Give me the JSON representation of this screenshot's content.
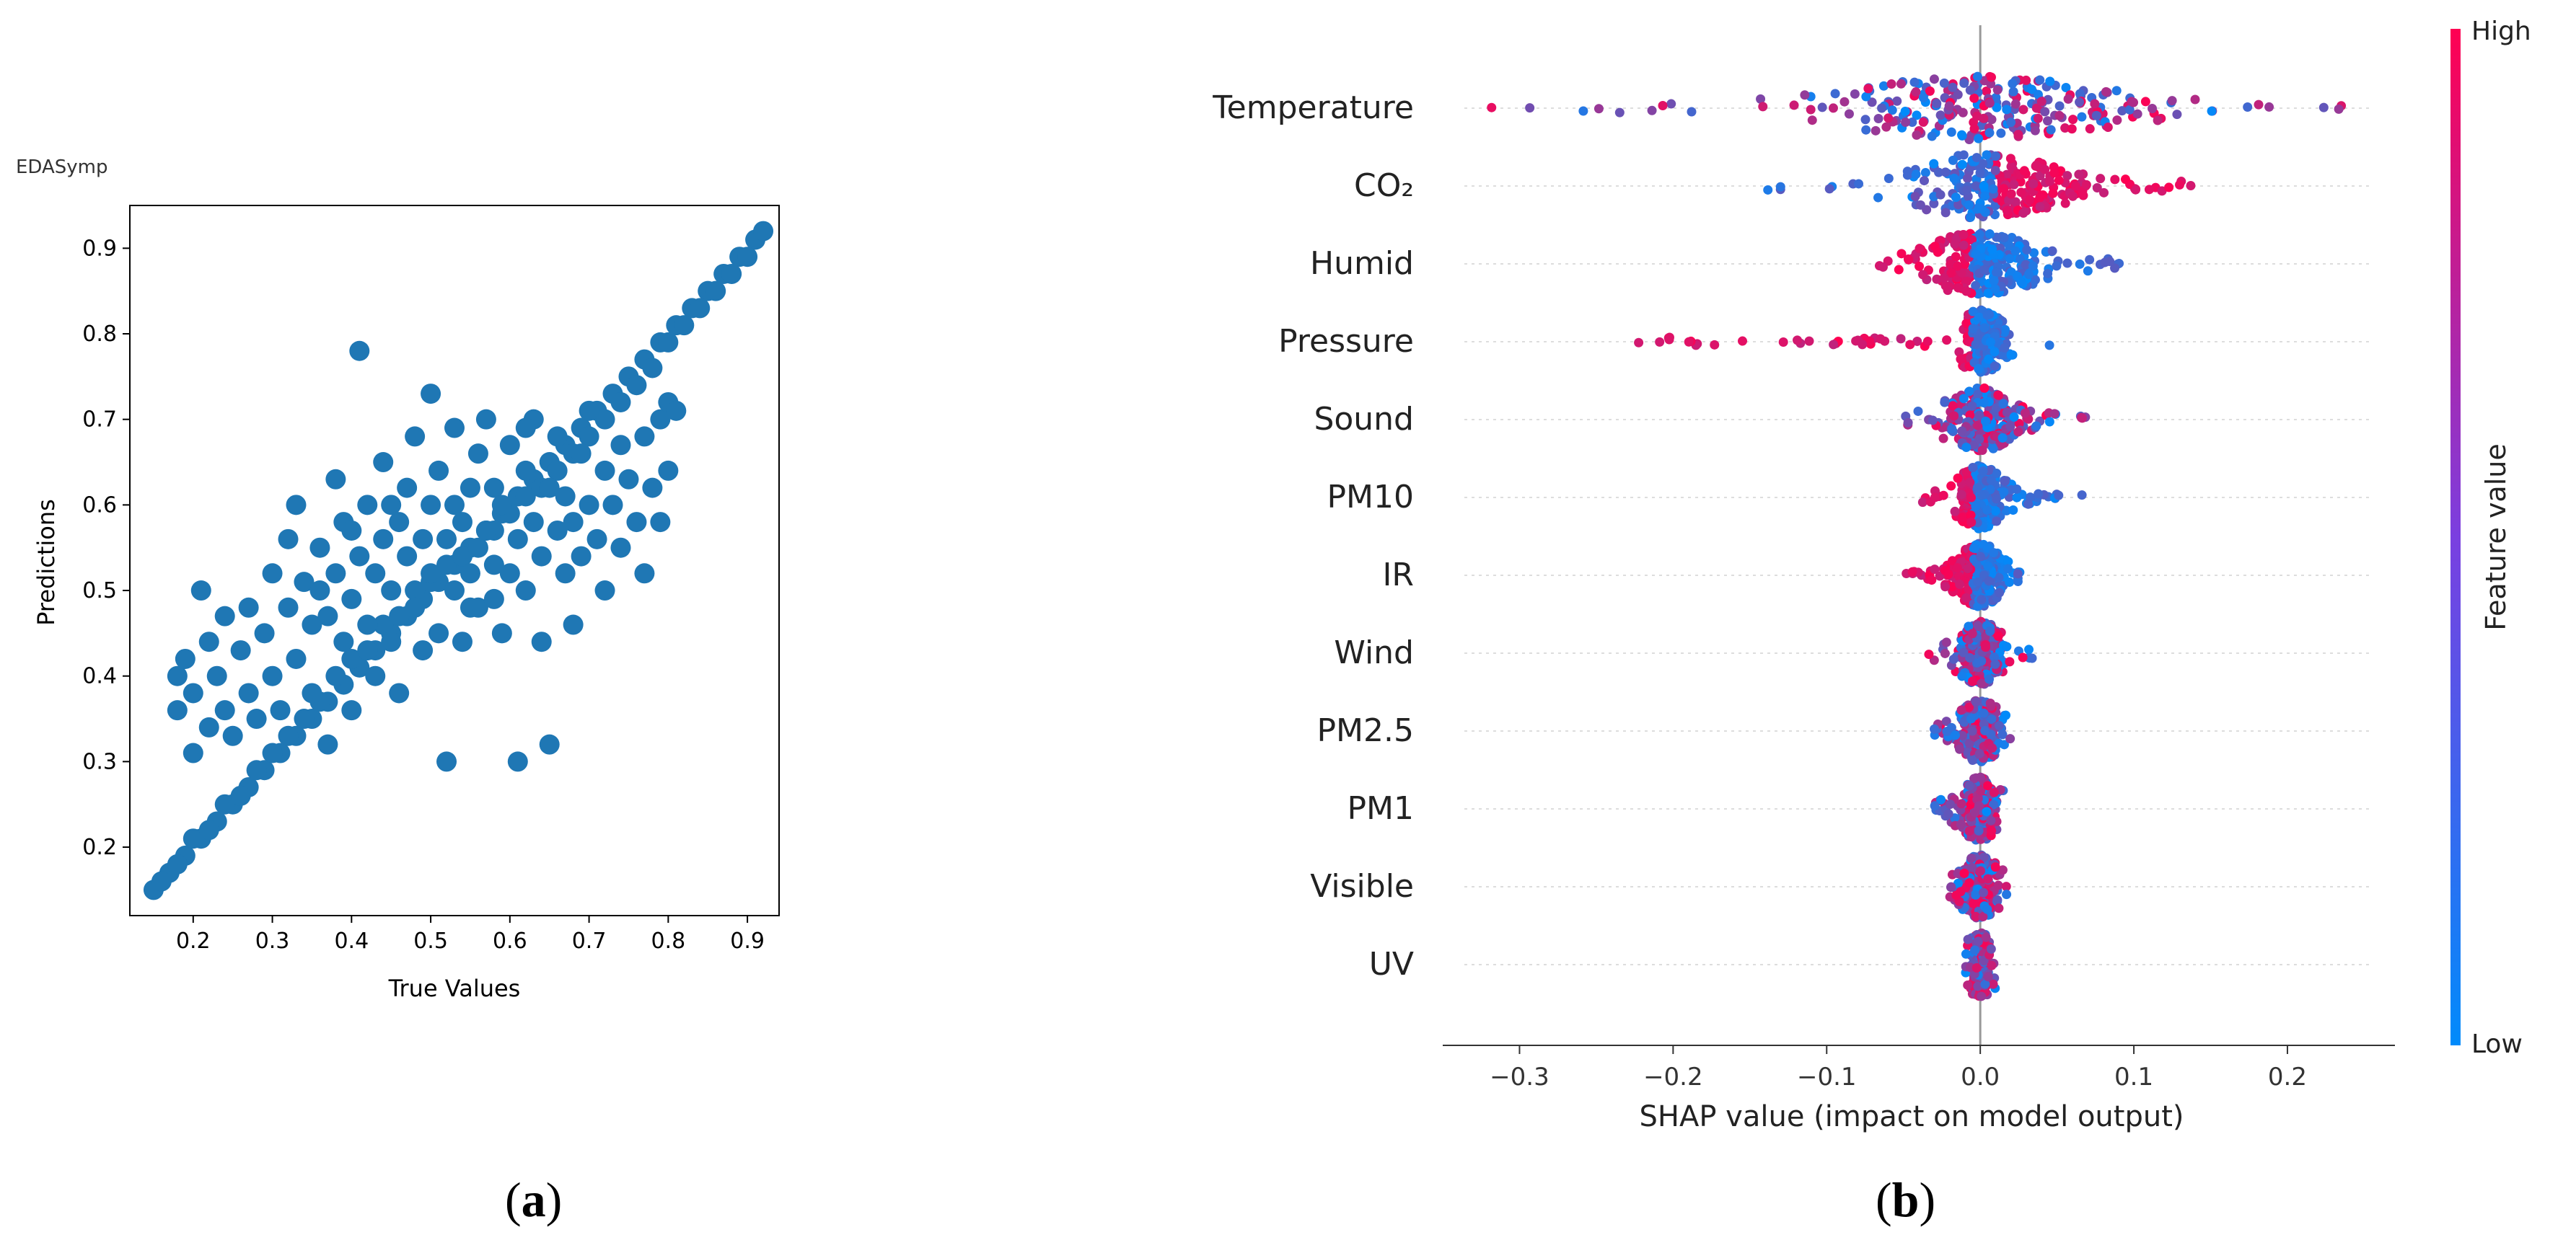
{
  "chart_data": [
    {
      "type": "scatter",
      "panel_label": "a",
      "title": "EDASymp",
      "xlabel": "True Values",
      "ylabel": "Predictions",
      "xlim": [
        0.12,
        0.94
      ],
      "ylim": [
        0.12,
        0.95
      ],
      "xticks": [
        0.2,
        0.3,
        0.4,
        0.5,
        0.6,
        0.7,
        0.8,
        0.9
      ],
      "yticks": [
        0.2,
        0.3,
        0.4,
        0.5,
        0.6,
        0.7,
        0.8,
        0.9
      ],
      "grid": false,
      "color": "#1f77b4",
      "points": [
        [
          0.15,
          0.15
        ],
        [
          0.17,
          0.17
        ],
        [
          0.19,
          0.19
        ],
        [
          0.21,
          0.21
        ],
        [
          0.23,
          0.23
        ],
        [
          0.25,
          0.25
        ],
        [
          0.27,
          0.27
        ],
        [
          0.29,
          0.29
        ],
        [
          0.31,
          0.31
        ],
        [
          0.33,
          0.33
        ],
        [
          0.35,
          0.35
        ],
        [
          0.37,
          0.37
        ],
        [
          0.39,
          0.39
        ],
        [
          0.41,
          0.41
        ],
        [
          0.43,
          0.43
        ],
        [
          0.45,
          0.45
        ],
        [
          0.47,
          0.47
        ],
        [
          0.49,
          0.49
        ],
        [
          0.51,
          0.51
        ],
        [
          0.53,
          0.53
        ],
        [
          0.55,
          0.55
        ],
        [
          0.57,
          0.57
        ],
        [
          0.59,
          0.59
        ],
        [
          0.61,
          0.61
        ],
        [
          0.63,
          0.63
        ],
        [
          0.65,
          0.65
        ],
        [
          0.67,
          0.67
        ],
        [
          0.69,
          0.69
        ],
        [
          0.71,
          0.71
        ],
        [
          0.73,
          0.73
        ],
        [
          0.75,
          0.75
        ],
        [
          0.77,
          0.77
        ],
        [
          0.79,
          0.79
        ],
        [
          0.81,
          0.81
        ],
        [
          0.83,
          0.83
        ],
        [
          0.85,
          0.85
        ],
        [
          0.87,
          0.87
        ],
        [
          0.89,
          0.89
        ],
        [
          0.91,
          0.91
        ],
        [
          0.92,
          0.92
        ],
        [
          0.16,
          0.16
        ],
        [
          0.18,
          0.18
        ],
        [
          0.2,
          0.21
        ],
        [
          0.22,
          0.22
        ],
        [
          0.24,
          0.25
        ],
        [
          0.26,
          0.26
        ],
        [
          0.28,
          0.29
        ],
        [
          0.3,
          0.31
        ],
        [
          0.32,
          0.33
        ],
        [
          0.34,
          0.35
        ],
        [
          0.36,
          0.37
        ],
        [
          0.38,
          0.4
        ],
        [
          0.4,
          0.42
        ],
        [
          0.42,
          0.43
        ],
        [
          0.44,
          0.46
        ],
        [
          0.46,
          0.47
        ],
        [
          0.48,
          0.5
        ],
        [
          0.5,
          0.51
        ],
        [
          0.52,
          0.53
        ],
        [
          0.54,
          0.54
        ],
        [
          0.56,
          0.55
        ],
        [
          0.58,
          0.57
        ],
        [
          0.6,
          0.59
        ],
        [
          0.62,
          0.61
        ],
        [
          0.64,
          0.62
        ],
        [
          0.66,
          0.64
        ],
        [
          0.68,
          0.66
        ],
        [
          0.7,
          0.68
        ],
        [
          0.72,
          0.7
        ],
        [
          0.74,
          0.72
        ],
        [
          0.76,
          0.74
        ],
        [
          0.78,
          0.76
        ],
        [
          0.8,
          0.79
        ],
        [
          0.82,
          0.81
        ],
        [
          0.84,
          0.83
        ],
        [
          0.86,
          0.85
        ],
        [
          0.88,
          0.87
        ],
        [
          0.9,
          0.89
        ],
        [
          0.18,
          0.4
        ],
        [
          0.18,
          0.36
        ],
        [
          0.19,
          0.42
        ],
        [
          0.2,
          0.38
        ],
        [
          0.2,
          0.31
        ],
        [
          0.21,
          0.5
        ],
        [
          0.22,
          0.44
        ],
        [
          0.22,
          0.34
        ],
        [
          0.23,
          0.4
        ],
        [
          0.24,
          0.47
        ],
        [
          0.24,
          0.36
        ],
        [
          0.25,
          0.33
        ],
        [
          0.26,
          0.43
        ],
        [
          0.27,
          0.48
        ],
        [
          0.27,
          0.38
        ],
        [
          0.28,
          0.35
        ],
        [
          0.29,
          0.45
        ],
        [
          0.3,
          0.52
        ],
        [
          0.3,
          0.4
        ],
        [
          0.31,
          0.36
        ],
        [
          0.32,
          0.48
        ],
        [
          0.32,
          0.56
        ],
        [
          0.33,
          0.6
        ],
        [
          0.33,
          0.42
        ],
        [
          0.34,
          0.51
        ],
        [
          0.35,
          0.46
        ],
        [
          0.35,
          0.38
        ],
        [
          0.36,
          0.55
        ],
        [
          0.37,
          0.47
        ],
        [
          0.37,
          0.32
        ],
        [
          0.38,
          0.52
        ],
        [
          0.38,
          0.63
        ],
        [
          0.39,
          0.58
        ],
        [
          0.39,
          0.44
        ],
        [
          0.4,
          0.49
        ],
        [
          0.4,
          0.36
        ],
        [
          0.41,
          0.54
        ],
        [
          0.41,
          0.78
        ],
        [
          0.42,
          0.6
        ],
        [
          0.42,
          0.46
        ],
        [
          0.43,
          0.52
        ],
        [
          0.43,
          0.4
        ],
        [
          0.44,
          0.56
        ],
        [
          0.44,
          0.65
        ],
        [
          0.45,
          0.5
        ],
        [
          0.45,
          0.44
        ],
        [
          0.46,
          0.58
        ],
        [
          0.46,
          0.38
        ],
        [
          0.47,
          0.62
        ],
        [
          0.47,
          0.54
        ],
        [
          0.48,
          0.48
        ],
        [
          0.48,
          0.68
        ],
        [
          0.49,
          0.56
        ],
        [
          0.49,
          0.43
        ],
        [
          0.5,
          0.6
        ],
        [
          0.5,
          0.52
        ],
        [
          0.5,
          0.73
        ],
        [
          0.51,
          0.45
        ],
        [
          0.51,
          0.64
        ],
        [
          0.52,
          0.56
        ],
        [
          0.52,
          0.3
        ],
        [
          0.53,
          0.6
        ],
        [
          0.53,
          0.5
        ],
        [
          0.53,
          0.69
        ],
        [
          0.54,
          0.58
        ],
        [
          0.54,
          0.44
        ],
        [
          0.55,
          0.62
        ],
        [
          0.55,
          0.52
        ],
        [
          0.56,
          0.66
        ],
        [
          0.56,
          0.48
        ],
        [
          0.57,
          0.57
        ],
        [
          0.57,
          0.7
        ],
        [
          0.58,
          0.53
        ],
        [
          0.58,
          0.62
        ],
        [
          0.59,
          0.45
        ],
        [
          0.59,
          0.6
        ],
        [
          0.6,
          0.67
        ],
        [
          0.6,
          0.52
        ],
        [
          0.61,
          0.56
        ],
        [
          0.61,
          0.3
        ],
        [
          0.62,
          0.64
        ],
        [
          0.62,
          0.5
        ],
        [
          0.63,
          0.58
        ],
        [
          0.63,
          0.7
        ],
        [
          0.64,
          0.54
        ],
        [
          0.64,
          0.44
        ],
        [
          0.65,
          0.62
        ],
        [
          0.65,
          0.32
        ],
        [
          0.66,
          0.57
        ],
        [
          0.66,
          0.68
        ],
        [
          0.67,
          0.52
        ],
        [
          0.67,
          0.61
        ],
        [
          0.68,
          0.58
        ],
        [
          0.68,
          0.46
        ],
        [
          0.69,
          0.66
        ],
        [
          0.69,
          0.54
        ],
        [
          0.7,
          0.6
        ],
        [
          0.7,
          0.71
        ],
        [
          0.71,
          0.56
        ],
        [
          0.72,
          0.64
        ],
        [
          0.72,
          0.5
        ],
        [
          0.73,
          0.6
        ],
        [
          0.74,
          0.67
        ],
        [
          0.74,
          0.55
        ],
        [
          0.75,
          0.63
        ],
        [
          0.76,
          0.58
        ],
        [
          0.77,
          0.68
        ],
        [
          0.77,
          0.52
        ],
        [
          0.78,
          0.62
        ],
        [
          0.79,
          0.58
        ],
        [
          0.79,
          0.7
        ],
        [
          0.8,
          0.72
        ],
        [
          0.8,
          0.64
        ],
        [
          0.81,
          0.71
        ],
        [
          0.55,
          0.48
        ],
        [
          0.45,
          0.6
        ],
        [
          0.4,
          0.57
        ],
        [
          0.36,
          0.5
        ],
        [
          0.58,
          0.49
        ],
        [
          0.62,
          0.69
        ]
      ]
    },
    {
      "type": "beeswarm",
      "panel_label": "b",
      "xlabel": "SHAP value (impact on model output)",
      "xlim": [
        -0.35,
        0.27
      ],
      "xticks": [
        -0.3,
        -0.2,
        -0.1,
        0.0,
        0.1,
        0.2
      ],
      "tick_labels": [
        "−0.3",
        "−0.2",
        "−0.1",
        "0.0",
        "0.1",
        "0.2"
      ],
      "colorbar": {
        "label": "Feature value",
        "high": "High",
        "low": "Low",
        "low_color": "#008bfb",
        "high_color": "#ff0052"
      },
      "features": [
        {
          "name": "Temperature",
          "min": -0.32,
          "max": 0.24,
          "core": [
            -0.12,
            0.16
          ],
          "high_side": "mixed"
        },
        {
          "name": "CO₂",
          "min": -0.14,
          "max": 0.14,
          "core": [
            -0.04,
            0.13
          ],
          "high_side": "positive"
        },
        {
          "name": "Humid",
          "min": -0.07,
          "max": 0.1,
          "core": [
            -0.05,
            0.07
          ],
          "high_side": "negative"
        },
        {
          "name": "Pressure",
          "min": -0.23,
          "max": 0.05,
          "core": [
            -0.01,
            0.03
          ],
          "high_side": "negative"
        },
        {
          "name": "Sound",
          "min": -0.05,
          "max": 0.07,
          "core": [
            -0.03,
            0.05
          ],
          "high_side": "mixed"
        },
        {
          "name": "PM10",
          "min": -0.04,
          "max": 0.07,
          "core": [
            -0.02,
            0.03
          ],
          "high_side": "negative"
        },
        {
          "name": "IR",
          "min": -0.05,
          "max": 0.03,
          "core": [
            -0.03,
            0.02
          ],
          "high_side": "negative"
        },
        {
          "name": "Wind",
          "min": -0.04,
          "max": 0.04,
          "core": [
            -0.02,
            0.02
          ],
          "high_side": "mixed"
        },
        {
          "name": "PM2.5",
          "min": -0.03,
          "max": 0.02,
          "core": [
            -0.02,
            0.02
          ],
          "high_side": "mixed"
        },
        {
          "name": "PM1",
          "min": -0.03,
          "max": 0.02,
          "core": [
            -0.015,
            0.015
          ],
          "high_side": "mixed"
        },
        {
          "name": "Visible",
          "min": -0.02,
          "max": 0.02,
          "core": [
            -0.015,
            0.015
          ],
          "high_side": "mixed"
        },
        {
          "name": "UV",
          "min": -0.01,
          "max": 0.01,
          "core": [
            -0.008,
            0.008
          ],
          "high_side": "mixed"
        }
      ]
    }
  ],
  "captions": {
    "a": "a",
    "b": "b"
  }
}
